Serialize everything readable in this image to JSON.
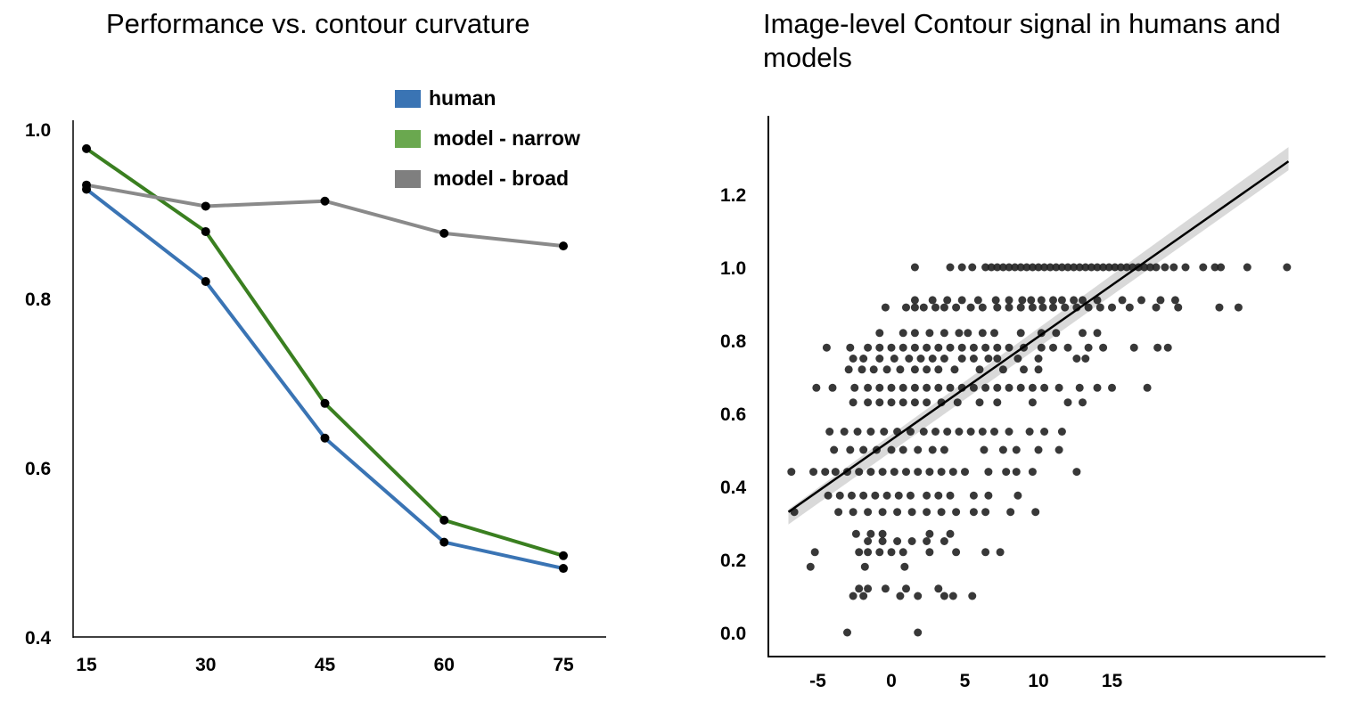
{
  "chart_data": [
    {
      "type": "line",
      "title": "Performance vs. contour curvature",
      "xlabel": "",
      "ylabel": "",
      "categories": [
        15,
        30,
        45,
        60,
        75
      ],
      "ylim": [
        0.4,
        1.0
      ],
      "yticks": [
        "0.4",
        "0.6",
        "0.8",
        "1.0"
      ],
      "xticks": [
        "15",
        "30",
        "45",
        "60",
        "75"
      ],
      "grid": false,
      "legend_placement": "top-right",
      "series": [
        {
          "name": "human",
          "color": "#3a74b4",
          "values": [
            0.929,
            0.82,
            0.635,
            0.512,
            0.481
          ]
        },
        {
          "name": "model - narrow",
          "color": "#3a7f20",
          "values": [
            0.977,
            0.879,
            0.676,
            0.538,
            0.496
          ]
        },
        {
          "name": "model - broad",
          "color": "#8a8a8a",
          "values": [
            0.934,
            0.909,
            0.915,
            0.877,
            0.862
          ]
        }
      ],
      "legend_colors": [
        "#3a74b4",
        "#6aa84f",
        "#7f7f7f"
      ]
    },
    {
      "type": "scatter",
      "title": "Image-level Contour signal in humans and models",
      "xlabel": "",
      "ylabel": "",
      "xticks": [
        "-5",
        "0",
        "5",
        "10",
        "15"
      ],
      "yticks": [
        "0.0",
        "0.2",
        "0.4",
        "0.6",
        "0.8",
        "1.0",
        "1.2"
      ],
      "xlim": [
        -8.3,
        29.5
      ],
      "ylim": [
        -0.06,
        1.41
      ],
      "grid": false,
      "point_color": "#222222",
      "regression_line": {
        "x": [
          -7,
          27
        ],
        "y": [
          0.33,
          1.29
        ],
        "color": "#000000",
        "ci_color": "#d0d0d0"
      },
      "rows": [
        {
          "y": 1.0,
          "x": [
            1.6,
            4,
            4.8,
            5.5,
            6.4,
            6.8,
            7.2,
            7.6,
            8,
            8.4,
            8.8,
            9.2,
            9.6,
            10,
            10.4,
            10.8,
            11.2,
            11.6,
            12,
            12.4,
            12.8,
            13.2,
            13.6,
            14,
            14.4,
            14.8,
            15.2,
            15.6,
            16,
            16.4,
            16.8,
            17.2,
            17.6,
            18,
            18.6,
            19.2,
            20,
            21.2,
            22,
            22.4,
            24.2,
            26.9
          ]
        },
        {
          "y": 0.91,
          "x": [
            1.6,
            2.8,
            3.8,
            4.8,
            5.9,
            7.1,
            8,
            8.9,
            9.5,
            10.2,
            11,
            11.6,
            12.4,
            13,
            14,
            15.7,
            17,
            18.3,
            19.3
          ]
        },
        {
          "y": 0.89,
          "x": [
            -0.4,
            1,
            1.6,
            2.2,
            3,
            3.6,
            4.4,
            5.4,
            6.2,
            7.2,
            8,
            8.8,
            9.6,
            10.3,
            11,
            11.8,
            12.6,
            13.4,
            14.2,
            15,
            16.2,
            18,
            19.5,
            22.3,
            23.6
          ]
        },
        {
          "y": 0.82,
          "x": [
            -0.8,
            0.8,
            1.6,
            2.6,
            3.6,
            4.6,
            5.2,
            6.2,
            7,
            8.8,
            10.2,
            11.2,
            13,
            14
          ]
        },
        {
          "y": 0.78,
          "x": [
            -4.4,
            -2.8,
            -1.6,
            -0.8,
            0,
            0.8,
            1.6,
            2.4,
            3.2,
            4,
            4.8,
            5.6,
            6.4,
            7.2,
            8,
            9,
            10.2,
            11,
            12,
            13.4,
            14.4,
            16.5,
            18.1,
            18.8
          ]
        },
        {
          "y": 0.75,
          "x": [
            -2.6,
            -1.9,
            -0.8,
            0.2,
            1.2,
            2,
            2.8,
            3.6,
            4.8,
            5.6,
            6.6,
            7.2,
            8.6,
            10,
            12.6,
            13.2
          ]
        },
        {
          "y": 0.72,
          "x": [
            -2.9,
            -2,
            -1.2,
            -0.3,
            0.6,
            1.6,
            2.4,
            3.2,
            4.3,
            6,
            7.6,
            9,
            10
          ]
        },
        {
          "y": 0.67,
          "x": [
            -5.1,
            -4,
            -2.5,
            -1.6,
            -0.8,
            0,
            0.8,
            1.6,
            2.4,
            3.2,
            4,
            4.8,
            5.6,
            6.4,
            7.2,
            8,
            8.8,
            9.6,
            10.4,
            11.4,
            12.8,
            14,
            15,
            17.4
          ]
        },
        {
          "y": 0.63,
          "x": [
            -2.6,
            -1.6,
            -0.8,
            0,
            0.8,
            1.6,
            2.4,
            3.4,
            4.5,
            6,
            7.2,
            9.6,
            12,
            13
          ]
        },
        {
          "y": 0.55,
          "x": [
            -4.2,
            -3.2,
            -2.3,
            -1.4,
            -0.5,
            0.4,
            1.3,
            2.2,
            3,
            3.8,
            4.6,
            5.4,
            6.2,
            7,
            8,
            9.4,
            10.4,
            11.6
          ]
        },
        {
          "y": 0.5,
          "x": [
            -3.9,
            -2.8,
            -1.9,
            -1,
            0,
            0.8,
            1.8,
            2.8,
            3.6,
            6.3,
            7.6,
            8.5,
            10,
            11.4
          ]
        },
        {
          "y": 0.44,
          "x": [
            -6.8,
            -5.3,
            -4.5,
            -3.8,
            -3,
            -2.2,
            -1.4,
            -0.6,
            0.2,
            1,
            1.8,
            2.6,
            3.4,
            4.2,
            5,
            6.6,
            7.8,
            8.5,
            9.6,
            12.6
          ]
        },
        {
          "y": 0.375,
          "x": [
            -4.3,
            -3.5,
            -2.7,
            -1.9,
            -1.1,
            -0.3,
            0.5,
            1.3,
            2.4,
            3.2,
            4,
            5.6,
            6.6,
            8.6
          ]
        },
        {
          "y": 0.33,
          "x": [
            -6.6,
            -3.6,
            -2.6,
            -1.6,
            -0.6,
            0.4,
            1.4,
            2.4,
            3.4,
            4.4,
            5.6,
            6.4,
            8.1,
            9.8
          ]
        },
        {
          "y": 0.27,
          "x": [
            -2.4,
            -1.4,
            -0.6,
            2.6,
            4
          ]
        },
        {
          "y": 0.25,
          "x": [
            -1.6,
            -0.6,
            0.4,
            1.4,
            2.4,
            3.6
          ]
        },
        {
          "y": 0.22,
          "x": [
            -5.2,
            -2.2,
            -1.6,
            -0.8,
            0,
            0.8,
            2.6,
            4.4,
            6.4,
            7.4
          ]
        },
        {
          "y": 0.18,
          "x": [
            -5.5,
            -1.8,
            0.9
          ]
        },
        {
          "y": 0.12,
          "x": [
            -2.2,
            -1.6,
            -0.4,
            1,
            3.2
          ]
        },
        {
          "y": 0.1,
          "x": [
            -2.6,
            -1.9,
            0.6,
            1.8,
            3.6,
            4.2,
            5.5
          ]
        },
        {
          "y": 0.0,
          "x": [
            -3,
            1.8
          ]
        }
      ]
    }
  ]
}
